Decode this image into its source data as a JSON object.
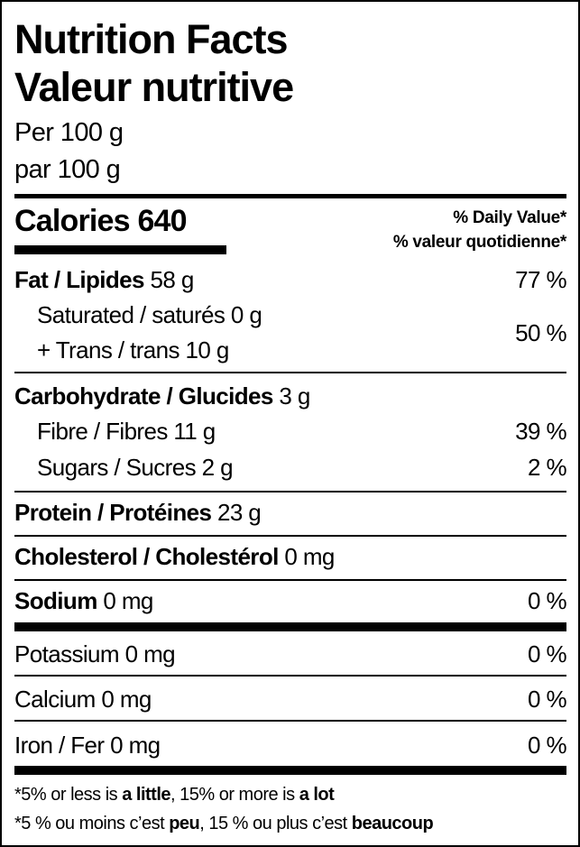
{
  "title_en": "Nutrition Facts",
  "title_fr": "Valeur nutritive",
  "serving_en": "Per 100 g",
  "serving_fr": "par 100 g",
  "calories": {
    "label": "Calories",
    "value": "640"
  },
  "dv_header_en": "% Daily Value*",
  "dv_header_fr": "% valeur quotidienne*",
  "nutrients": {
    "fat": {
      "label": "Fat / Lipides",
      "amount": "58 g",
      "dv": "77 %"
    },
    "saturated": {
      "label": "Saturated / saturés",
      "amount": "0 g"
    },
    "trans": {
      "label": "+ Trans / trans",
      "amount": "10 g"
    },
    "sat_trans_dv": "50 %",
    "carbohydrate": {
      "label": "Carbohydrate / Glucides",
      "amount": "3 g"
    },
    "fibre": {
      "label": "Fibre / Fibres",
      "amount": "11 g",
      "dv": "39 %"
    },
    "sugars": {
      "label": "Sugars / Sucres",
      "amount": "2 g",
      "dv": "2 %"
    },
    "protein": {
      "label": "Protein / Protéines",
      "amount": "23 g"
    },
    "cholesterol": {
      "label": "Cholesterol / Cholestérol",
      "amount": "0 mg"
    },
    "sodium": {
      "label": "Sodium",
      "amount": "0 mg",
      "dv": "0 %"
    },
    "potassium": {
      "label": "Potassium",
      "amount": "0 mg",
      "dv": "0 %"
    },
    "calcium": {
      "label": "Calcium",
      "amount": "0 mg",
      "dv": "0 %"
    },
    "iron": {
      "label": "Iron / Fer",
      "amount": "0 mg",
      "dv": "0 %"
    }
  },
  "footnote_en": {
    "a": "*5% or less is ",
    "b": "a little",
    ", c": "",
    "c": ", 15% or more is ",
    "d": "a lot"
  },
  "footnote_fr": {
    "a": "*5 % ou moins c’est ",
    "b": "peu",
    "c": ", 15 % ou plus c’est ",
    "d": "beaucoup"
  }
}
